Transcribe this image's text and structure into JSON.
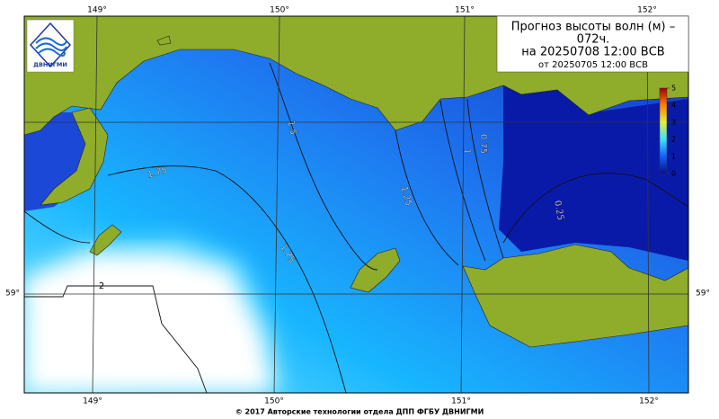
{
  "header": {
    "title": "Прогноз высоты волн (м) –",
    "lead": "072ч.",
    "valid": "на 20250708 12:00 ВСВ",
    "issued": "от 20250705 12:00 ВСВ"
  },
  "logo": {
    "text": "ДВНИГМИ"
  },
  "longitude_labels": [
    "149°",
    "150°",
    "151°",
    "152°"
  ],
  "latitude_labels": [
    "59°"
  ],
  "contour_labels": [
    1.5,
    1.75,
    1.25,
    1,
    0.75,
    0.25,
    1.75,
    2
  ],
  "colorbar": {
    "lim": [
      0,
      5
    ],
    "ticks": [
      0,
      1,
      2,
      3,
      4,
      5
    ]
  },
  "footer": {
    "copyright": "© 2017 Авторские технологии отдела ДПП ФГБУ ДВНИГМИ"
  }
}
